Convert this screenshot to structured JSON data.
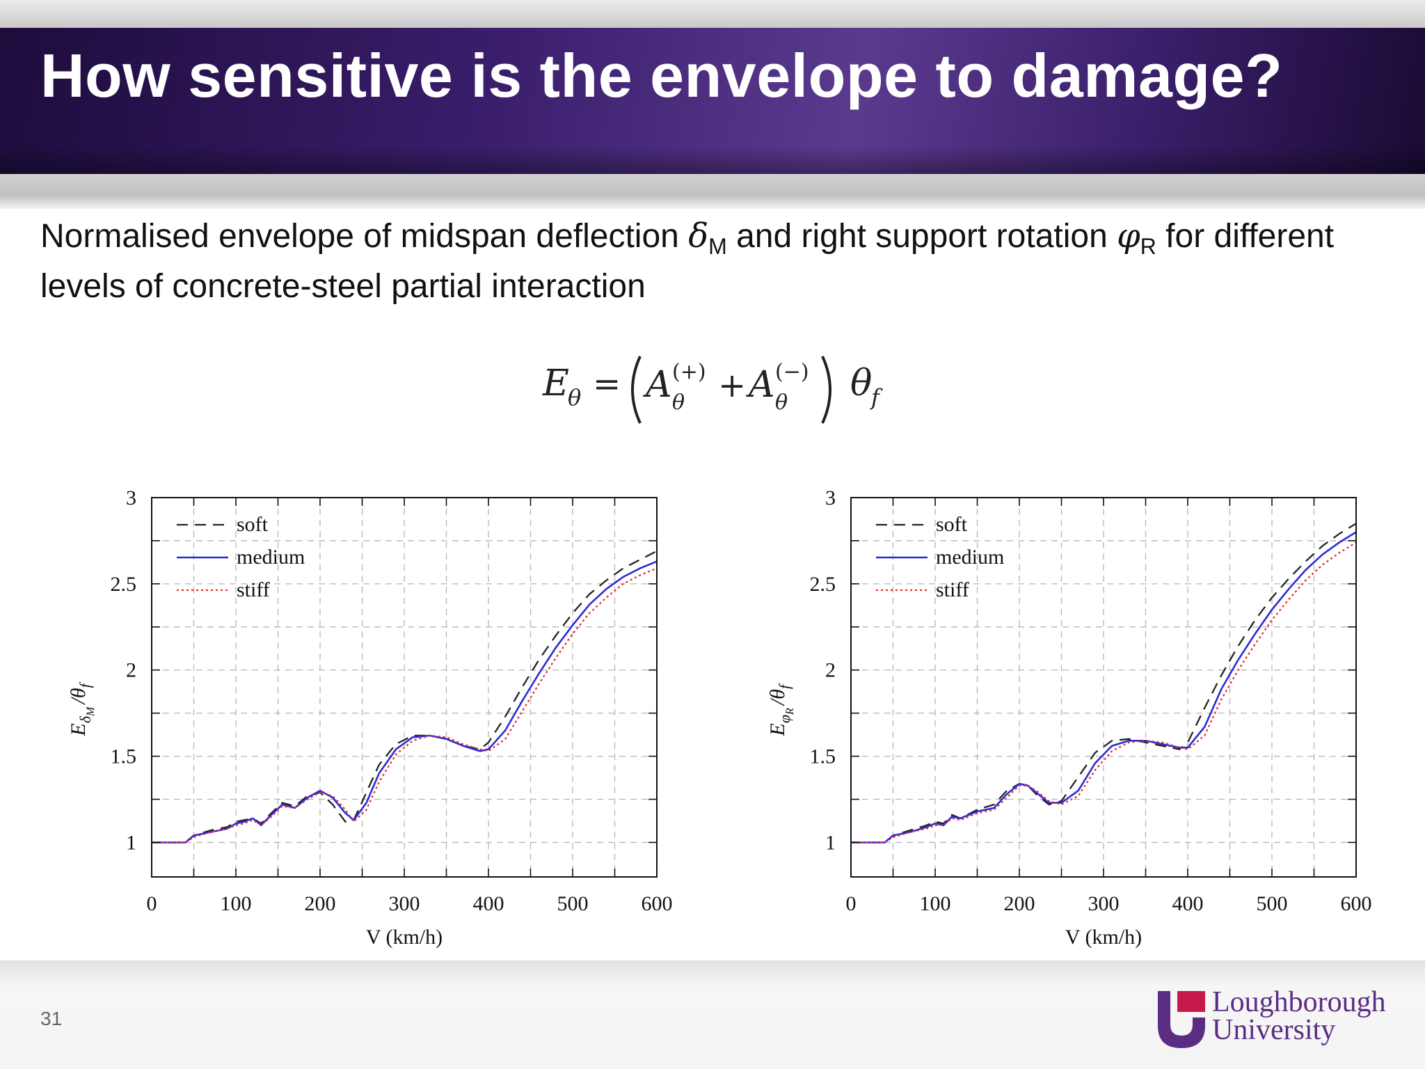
{
  "slide": {
    "title": "How sensitive is the envelope to damage?",
    "subtitle_part1": "Normalised envelope of midspan deflection ",
    "delta_symbol": "δ",
    "delta_sub": "M",
    "subtitle_part2": " and right support rotation ",
    "phi_symbol": "φ",
    "phi_sub": "R",
    "subtitle_part3": " for different levels of concrete-steel partial interaction",
    "page_number": "31",
    "logo_line1": "Loughborough",
    "logo_line2": "University",
    "colors": {
      "title_bar": "#3a1e6c",
      "logo": "#5b2d82",
      "logo_accent": "#c8194b"
    }
  },
  "equation": {
    "lhs": "E",
    "lhs_sub": "θ",
    "equals": "=",
    "term1": "A",
    "term1_sup": "(+)",
    "term1_sub": "θ",
    "plus": "+",
    "term2": "A",
    "term2_sup": "(−)",
    "term2_sub": "θ",
    "factor": "θ",
    "factor_sub": "f"
  },
  "chart_data": [
    {
      "type": "line",
      "ylabel": "E_δM/θ_f",
      "ylabel_parts": {
        "main": "E",
        "sub": "δ",
        "subsub": "M",
        "rest": "/θ",
        "rest_sub": "f"
      },
      "xlabel": "V (km/h)",
      "xlim": [
        0,
        600
      ],
      "ylim": [
        0.8,
        3
      ],
      "xticks": [
        0,
        100,
        200,
        300,
        400,
        500,
        600
      ],
      "xtick_labels": [
        "0",
        "100",
        "200",
        "300",
        "400",
        "500",
        "600"
      ],
      "yticks": [
        1,
        1.5,
        2,
        2.5,
        3
      ],
      "ytick_labels": [
        "1",
        "1.5",
        "2",
        "2.5",
        "3"
      ],
      "grid": true,
      "legend": "top-left",
      "series": [
        {
          "name": "soft",
          "style": "dashed",
          "color": "#222222",
          "x": [
            0,
            40,
            50,
            70,
            90,
            100,
            110,
            120,
            130,
            140,
            155,
            170,
            185,
            200,
            215,
            230,
            240,
            255,
            270,
            290,
            310,
            330,
            350,
            370,
            390,
            400,
            420,
            440,
            460,
            480,
            500,
            520,
            540,
            560,
            580,
            600
          ],
          "y": [
            1.0,
            1.0,
            1.04,
            1.07,
            1.09,
            1.12,
            1.13,
            1.14,
            1.11,
            1.16,
            1.23,
            1.21,
            1.27,
            1.29,
            1.22,
            1.12,
            1.13,
            1.29,
            1.45,
            1.57,
            1.62,
            1.62,
            1.6,
            1.56,
            1.54,
            1.58,
            1.73,
            1.9,
            2.06,
            2.2,
            2.33,
            2.44,
            2.52,
            2.59,
            2.64,
            2.69
          ]
        },
        {
          "name": "medium",
          "style": "solid",
          "color": "#2b2bd6",
          "x": [
            0,
            40,
            50,
            70,
            90,
            100,
            110,
            120,
            130,
            140,
            155,
            170,
            185,
            200,
            215,
            230,
            240,
            255,
            270,
            290,
            310,
            330,
            350,
            370,
            390,
            400,
            420,
            440,
            460,
            480,
            500,
            520,
            540,
            560,
            580,
            600
          ],
          "y": [
            1.0,
            1.0,
            1.04,
            1.06,
            1.08,
            1.11,
            1.12,
            1.14,
            1.1,
            1.15,
            1.22,
            1.2,
            1.26,
            1.3,
            1.26,
            1.17,
            1.13,
            1.23,
            1.4,
            1.54,
            1.61,
            1.62,
            1.6,
            1.56,
            1.53,
            1.54,
            1.65,
            1.82,
            1.98,
            2.13,
            2.26,
            2.38,
            2.47,
            2.54,
            2.59,
            2.63
          ]
        },
        {
          "name": "stiff",
          "style": "dotted",
          "color": "#e03030",
          "x": [
            0,
            40,
            50,
            70,
            90,
            100,
            110,
            120,
            130,
            140,
            155,
            170,
            185,
            200,
            215,
            230,
            240,
            255,
            270,
            290,
            310,
            330,
            350,
            370,
            390,
            400,
            420,
            440,
            460,
            480,
            500,
            520,
            540,
            560,
            580,
            600
          ],
          "y": [
            1.0,
            1.0,
            1.03,
            1.06,
            1.08,
            1.1,
            1.11,
            1.13,
            1.1,
            1.14,
            1.21,
            1.2,
            1.25,
            1.29,
            1.27,
            1.19,
            1.12,
            1.19,
            1.35,
            1.51,
            1.59,
            1.62,
            1.61,
            1.57,
            1.54,
            1.53,
            1.6,
            1.76,
            1.92,
            2.07,
            2.21,
            2.33,
            2.42,
            2.5,
            2.55,
            2.59
          ]
        }
      ]
    },
    {
      "type": "line",
      "ylabel": "E_φR/θ_f",
      "ylabel_parts": {
        "main": "E",
        "sub": "φ",
        "subsub": "R",
        "rest": "/θ",
        "rest_sub": "f"
      },
      "xlabel": "V (km/h)",
      "xlim": [
        0,
        600
      ],
      "ylim": [
        0.8,
        3
      ],
      "xticks": [
        0,
        100,
        200,
        300,
        400,
        500,
        600
      ],
      "xtick_labels": [
        "0",
        "100",
        "200",
        "300",
        "400",
        "500",
        "600"
      ],
      "yticks": [
        1,
        1.5,
        2,
        2.5,
        3
      ],
      "ytick_labels": [
        "1",
        "1.5",
        "2",
        "2.5",
        "3"
      ],
      "grid": true,
      "legend": "top-left",
      "series": [
        {
          "name": "soft",
          "style": "dashed",
          "color": "#222222",
          "x": [
            0,
            40,
            50,
            70,
            90,
            100,
            110,
            120,
            130,
            150,
            170,
            185,
            200,
            210,
            220,
            235,
            250,
            270,
            290,
            310,
            330,
            350,
            370,
            390,
            400,
            420,
            440,
            460,
            480,
            500,
            520,
            540,
            560,
            580,
            600
          ],
          "y": [
            1.0,
            1.0,
            1.04,
            1.07,
            1.1,
            1.12,
            1.11,
            1.16,
            1.14,
            1.19,
            1.22,
            1.3,
            1.34,
            1.33,
            1.28,
            1.22,
            1.24,
            1.38,
            1.52,
            1.59,
            1.6,
            1.58,
            1.56,
            1.54,
            1.58,
            1.78,
            1.97,
            2.14,
            2.29,
            2.42,
            2.53,
            2.63,
            2.72,
            2.79,
            2.85
          ]
        },
        {
          "name": "medium",
          "style": "solid",
          "color": "#2b2bd6",
          "x": [
            0,
            40,
            50,
            70,
            90,
            100,
            110,
            120,
            130,
            150,
            170,
            185,
            200,
            210,
            220,
            235,
            250,
            270,
            290,
            310,
            330,
            350,
            370,
            390,
            400,
            420,
            440,
            460,
            480,
            500,
            520,
            540,
            560,
            580,
            600
          ],
          "y": [
            1.0,
            1.0,
            1.04,
            1.06,
            1.09,
            1.11,
            1.1,
            1.15,
            1.14,
            1.18,
            1.2,
            1.28,
            1.34,
            1.33,
            1.29,
            1.23,
            1.23,
            1.3,
            1.46,
            1.56,
            1.59,
            1.59,
            1.57,
            1.55,
            1.55,
            1.67,
            1.89,
            2.06,
            2.21,
            2.35,
            2.47,
            2.58,
            2.67,
            2.74,
            2.8
          ]
        },
        {
          "name": "stiff",
          "style": "dotted",
          "color": "#e03030",
          "x": [
            0,
            40,
            50,
            70,
            90,
            100,
            110,
            120,
            130,
            150,
            170,
            185,
            200,
            210,
            220,
            235,
            250,
            270,
            290,
            310,
            330,
            350,
            370,
            390,
            400,
            420,
            440,
            460,
            480,
            500,
            520,
            540,
            560,
            580,
            600
          ],
          "y": [
            1.0,
            1.0,
            1.03,
            1.06,
            1.08,
            1.1,
            1.1,
            1.14,
            1.13,
            1.17,
            1.19,
            1.26,
            1.33,
            1.33,
            1.3,
            1.24,
            1.22,
            1.27,
            1.42,
            1.53,
            1.58,
            1.59,
            1.58,
            1.55,
            1.54,
            1.62,
            1.83,
            2.0,
            2.15,
            2.29,
            2.41,
            2.52,
            2.61,
            2.68,
            2.74
          ]
        }
      ]
    }
  ]
}
